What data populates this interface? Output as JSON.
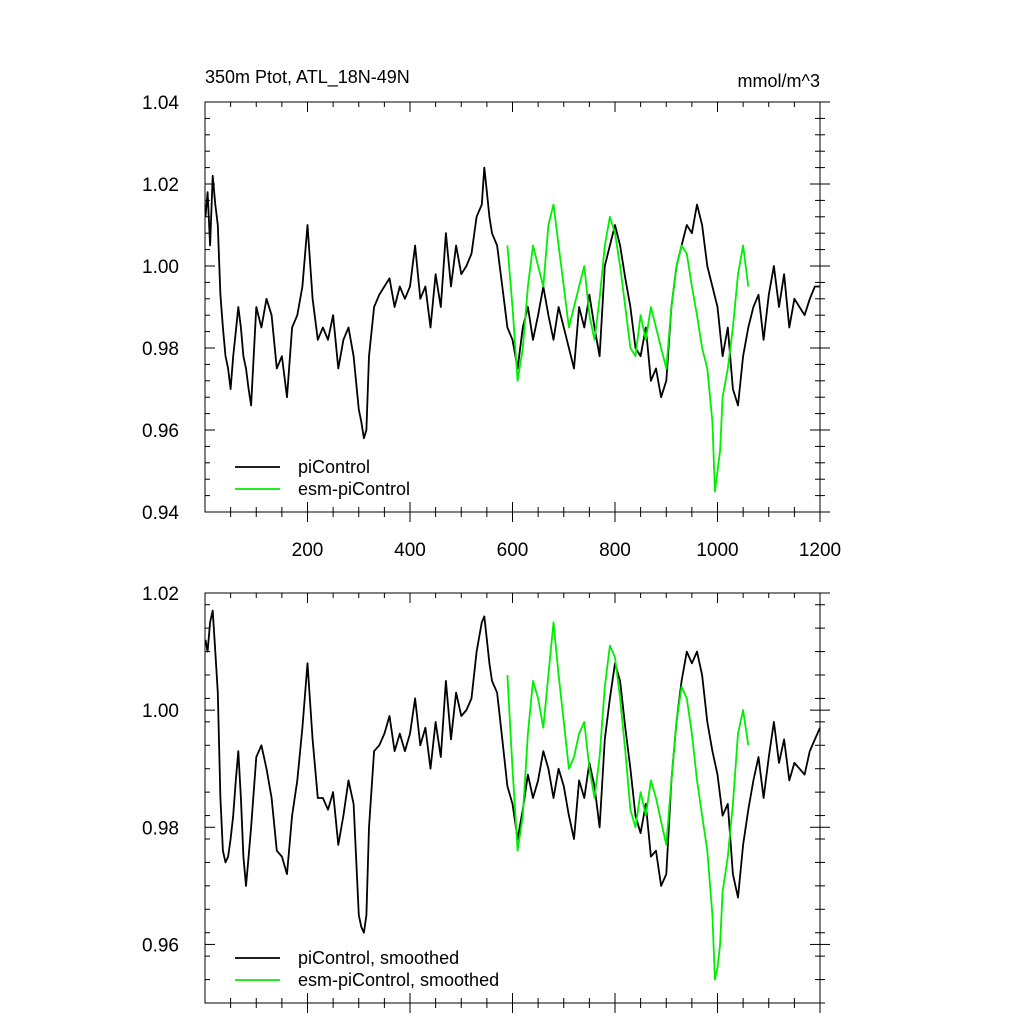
{
  "chart_data": [
    {
      "type": "line",
      "title": "350m Ptot, ATL_18N-49N",
      "units": "mmol/m^3",
      "xlim": [
        0,
        1200
      ],
      "ylim": [
        0.94,
        1.04
      ],
      "x_ticks": [
        200,
        400,
        600,
        800,
        1000,
        1200
      ],
      "x_tick_labels": [
        "200",
        "400",
        "600",
        "800",
        "1000",
        "1200"
      ],
      "y_ticks": [
        0.94,
        0.96,
        0.98,
        1.0,
        1.02,
        1.04
      ],
      "y_tick_labels": [
        "0.94",
        "0.96",
        "0.98",
        "1.00",
        "1.02",
        "1.04"
      ],
      "legend_position": "bottom-left",
      "series": [
        {
          "name": "piControl",
          "color": "#000000",
          "x": [
            1,
            5,
            10,
            15,
            20,
            25,
            30,
            35,
            40,
            45,
            50,
            55,
            60,
            65,
            70,
            75,
            80,
            85,
            90,
            95,
            100,
            110,
            120,
            130,
            140,
            150,
            160,
            170,
            180,
            190,
            200,
            210,
            220,
            230,
            240,
            250,
            260,
            270,
            280,
            290,
            300,
            305,
            310,
            315,
            320,
            330,
            340,
            350,
            360,
            370,
            380,
            390,
            400,
            410,
            420,
            430,
            440,
            450,
            460,
            470,
            480,
            490,
            500,
            510,
            520,
            530,
            540,
            545,
            550,
            555,
            560,
            570,
            580,
            590,
            600,
            610,
            620,
            630,
            640,
            650,
            660,
            670,
            680,
            690,
            700,
            710,
            720,
            730,
            740,
            750,
            760,
            770,
            780,
            790,
            800,
            810,
            820,
            830,
            840,
            850,
            860,
            870,
            880,
            890,
            900,
            910,
            920,
            930,
            940,
            950,
            960,
            970,
            980,
            990,
            1000,
            1010,
            1020,
            1030,
            1040,
            1050,
            1060,
            1070,
            1080,
            1090,
            1100,
            1110,
            1120,
            1130,
            1140,
            1150,
            1160,
            1170,
            1180,
            1190,
            1200
          ],
          "y": [
            1.012,
            1.018,
            1.005,
            1.022,
            1.015,
            1.01,
            0.993,
            0.985,
            0.978,
            0.975,
            0.97,
            0.978,
            0.984,
            0.99,
            0.985,
            0.978,
            0.975,
            0.97,
            0.966,
            0.978,
            0.99,
            0.985,
            0.992,
            0.988,
            0.975,
            0.978,
            0.968,
            0.985,
            0.988,
            0.995,
            1.01,
            0.992,
            0.982,
            0.985,
            0.982,
            0.988,
            0.975,
            0.982,
            0.985,
            0.978,
            0.965,
            0.962,
            0.958,
            0.96,
            0.978,
            0.99,
            0.993,
            0.995,
            0.997,
            0.99,
            0.995,
            0.992,
            0.995,
            1.005,
            0.992,
            0.995,
            0.985,
            0.998,
            0.99,
            1.008,
            0.995,
            1.005,
            0.998,
            1.0,
            1.003,
            1.012,
            1.015,
            1.024,
            1.018,
            1.012,
            1.008,
            1.005,
            0.995,
            0.985,
            0.982,
            0.975,
            0.985,
            0.99,
            0.982,
            0.988,
            0.995,
            0.988,
            0.982,
            0.99,
            0.985,
            0.98,
            0.975,
            0.99,
            0.985,
            0.993,
            0.985,
            0.978,
            1.0,
            1.005,
            1.01,
            1.005,
            0.997,
            0.99,
            0.98,
            0.978,
            0.985,
            0.972,
            0.975,
            0.968,
            0.972,
            0.99,
            1.0,
            1.005,
            1.01,
            1.008,
            1.015,
            1.01,
            1.0,
            0.995,
            0.99,
            0.978,
            0.985,
            0.97,
            0.966,
            0.978,
            0.985,
            0.99,
            0.993,
            0.982,
            0.993,
            1.0,
            0.99,
            0.998,
            0.985,
            0.992,
            0.99,
            0.988,
            0.992,
            0.995,
            0.995
          ]
        },
        {
          "name": "esm-piControl",
          "color": "#00ee00",
          "x": [
            590,
            600,
            610,
            620,
            630,
            640,
            650,
            660,
            670,
            680,
            690,
            700,
            710,
            720,
            730,
            740,
            750,
            760,
            770,
            780,
            790,
            800,
            810,
            820,
            830,
            840,
            850,
            860,
            870,
            880,
            890,
            900,
            910,
            920,
            930,
            940,
            950,
            960,
            970,
            980,
            990,
            995,
            1000,
            1005,
            1010,
            1020,
            1030,
            1040,
            1050,
            1060
          ],
          "y": [
            1.005,
            0.99,
            0.972,
            0.98,
            0.995,
            1.005,
            1.0,
            0.995,
            1.01,
            1.015,
            1.005,
            0.995,
            0.985,
            0.99,
            0.995,
            1.0,
            0.988,
            0.982,
            0.992,
            1.005,
            1.012,
            1.008,
            1.0,
            0.99,
            0.98,
            0.978,
            0.988,
            0.982,
            0.99,
            0.985,
            0.98,
            0.975,
            0.99,
            1.0,
            1.005,
            1.003,
            0.995,
            0.988,
            0.98,
            0.975,
            0.962,
            0.945,
            0.95,
            0.955,
            0.968,
            0.975,
            0.985,
            0.998,
            1.005,
            0.995
          ]
        }
      ]
    },
    {
      "type": "line",
      "xlim": [
        0,
        1200
      ],
      "ylim": [
        0.95,
        1.02
      ],
      "x_ticks": [
        200,
        400,
        600,
        800,
        1000,
        1200
      ],
      "y_ticks": [
        0.96,
        0.98,
        1.0,
        1.02
      ],
      "y_tick_labels": [
        "0.96",
        "0.98",
        "1.00",
        "1.02"
      ],
      "legend_position": "bottom-left",
      "series": [
        {
          "name": "piControl, smoothed",
          "color": "#000000",
          "x": [
            1,
            5,
            10,
            15,
            20,
            25,
            30,
            35,
            40,
            45,
            50,
            55,
            60,
            65,
            70,
            75,
            80,
            85,
            90,
            95,
            100,
            110,
            120,
            130,
            140,
            150,
            160,
            170,
            180,
            190,
            200,
            210,
            220,
            230,
            240,
            250,
            260,
            270,
            280,
            290,
            300,
            305,
            310,
            315,
            320,
            330,
            340,
            350,
            360,
            370,
            380,
            390,
            400,
            410,
            420,
            430,
            440,
            450,
            460,
            470,
            480,
            490,
            500,
            510,
            520,
            530,
            540,
            545,
            550,
            555,
            560,
            570,
            580,
            590,
            600,
            610,
            620,
            630,
            640,
            650,
            660,
            670,
            680,
            690,
            700,
            710,
            720,
            730,
            740,
            750,
            760,
            770,
            780,
            790,
            800,
            810,
            820,
            830,
            840,
            850,
            860,
            870,
            880,
            890,
            900,
            910,
            920,
            930,
            940,
            950,
            960,
            970,
            980,
            990,
            1000,
            1010,
            1020,
            1030,
            1040,
            1050,
            1060,
            1070,
            1080,
            1090,
            1100,
            1110,
            1120,
            1130,
            1140,
            1150,
            1160,
            1170,
            1180,
            1190,
            1200
          ],
          "y": [
            1.012,
            1.01,
            1.015,
            1.017,
            1.01,
            1.003,
            0.985,
            0.976,
            0.974,
            0.975,
            0.978,
            0.982,
            0.988,
            0.993,
            0.985,
            0.975,
            0.97,
            0.975,
            0.98,
            0.986,
            0.992,
            0.994,
            0.99,
            0.985,
            0.976,
            0.975,
            0.972,
            0.982,
            0.988,
            0.997,
            1.008,
            0.995,
            0.985,
            0.985,
            0.983,
            0.986,
            0.977,
            0.982,
            0.988,
            0.984,
            0.965,
            0.963,
            0.962,
            0.965,
            0.98,
            0.993,
            0.994,
            0.996,
            0.999,
            0.993,
            0.996,
            0.993,
            0.996,
            1.002,
            0.994,
            0.997,
            0.99,
            0.998,
            0.992,
            1.005,
            0.995,
            1.003,
            0.999,
            1.0,
            1.002,
            1.01,
            1.015,
            1.016,
            1.012,
            1.008,
            1.005,
            1.003,
            0.995,
            0.987,
            0.984,
            0.978,
            0.983,
            0.989,
            0.985,
            0.988,
            0.993,
            0.99,
            0.985,
            0.99,
            0.987,
            0.982,
            0.978,
            0.988,
            0.985,
            0.991,
            0.987,
            0.98,
            0.995,
            1.002,
            1.008,
            1.005,
            0.997,
            0.99,
            0.982,
            0.979,
            0.984,
            0.975,
            0.976,
            0.97,
            0.972,
            0.988,
            0.998,
            1.005,
            1.01,
            1.008,
            1.01,
            1.006,
            0.998,
            0.993,
            0.989,
            0.982,
            0.984,
            0.972,
            0.968,
            0.977,
            0.983,
            0.988,
            0.992,
            0.985,
            0.992,
            0.998,
            0.991,
            0.995,
            0.988,
            0.991,
            0.99,
            0.989,
            0.993,
            0.995,
            0.997
          ]
        },
        {
          "name": "esm-piControl, smoothed",
          "color": "#00ee00",
          "x": [
            590,
            600,
            610,
            620,
            630,
            640,
            650,
            660,
            670,
            680,
            690,
            700,
            710,
            720,
            730,
            740,
            750,
            760,
            770,
            780,
            790,
            800,
            810,
            820,
            830,
            840,
            850,
            860,
            870,
            880,
            890,
            900,
            910,
            920,
            930,
            940,
            950,
            960,
            970,
            980,
            990,
            995,
            1000,
            1005,
            1010,
            1020,
            1030,
            1040,
            1050,
            1060
          ],
          "y": [
            1.006,
            0.99,
            0.976,
            0.982,
            0.996,
            1.005,
            1.002,
            0.997,
            1.006,
            1.015,
            1.006,
            0.998,
            0.99,
            0.992,
            0.996,
            0.998,
            0.99,
            0.985,
            0.992,
            1.004,
            1.011,
            1.009,
            1.002,
            0.993,
            0.983,
            0.98,
            0.986,
            0.982,
            0.988,
            0.985,
            0.981,
            0.977,
            0.988,
            0.998,
            1.004,
            1.002,
            0.996,
            0.988,
            0.982,
            0.976,
            0.965,
            0.954,
            0.956,
            0.96,
            0.969,
            0.975,
            0.984,
            0.996,
            1.0,
            0.994
          ]
        }
      ]
    }
  ]
}
